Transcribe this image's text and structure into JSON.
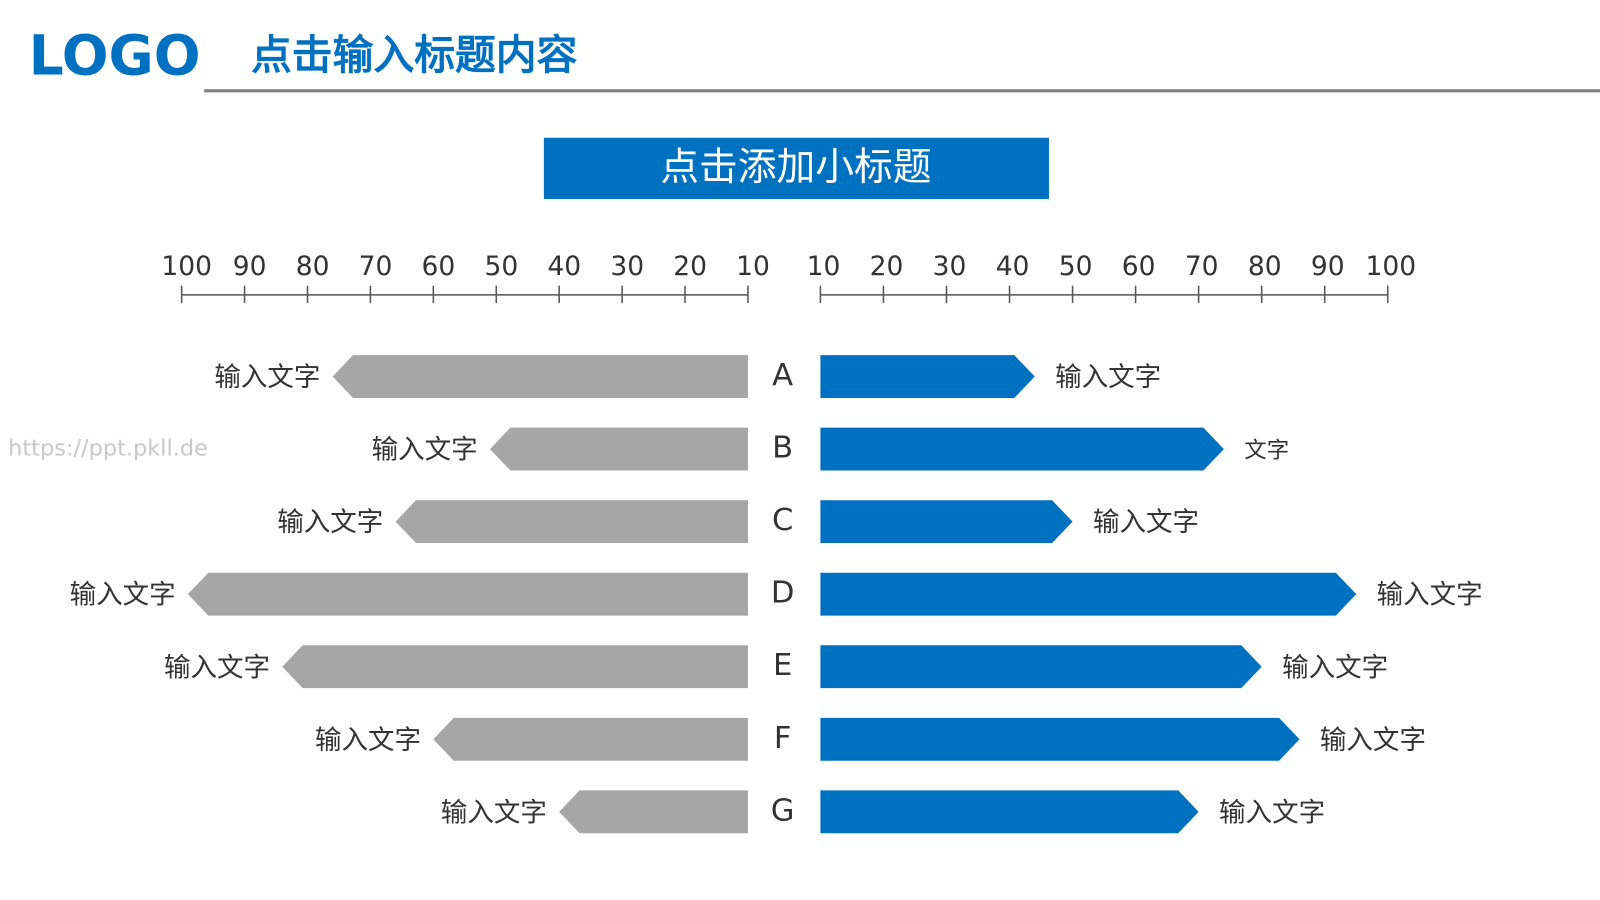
{
  "header": {
    "logo": "LOGO",
    "title": "点击输入标题内容"
  },
  "subtitle": "点击添加小标题",
  "watermark": "https://ppt.pkll.de",
  "chart_data": {
    "type": "butterfly-bar",
    "categories": [
      "A",
      "B",
      "C",
      "D",
      "E",
      "F",
      "G"
    ],
    "xlim": [
      10,
      100
    ],
    "xticks": [
      10,
      20,
      30,
      40,
      50,
      60,
      70,
      80,
      90,
      100
    ],
    "series": [
      {
        "color": "#a6a6a6",
        "values": [
          76,
          51,
          66,
          99,
          84,
          60,
          40
        ],
        "labels": [
          "输入文字",
          "输入文字",
          "输入文字",
          "输入文字",
          "输入文字",
          "输入文字",
          "输入文字"
        ]
      },
      {
        "color": "#0070c0",
        "values": [
          44,
          74,
          50,
          95,
          80,
          86,
          70
        ],
        "labels": [
          "输入文字",
          "文字",
          "输入文字",
          "输入文字",
          "输入文字",
          "输入文字",
          "输入文字"
        ]
      }
    ]
  }
}
